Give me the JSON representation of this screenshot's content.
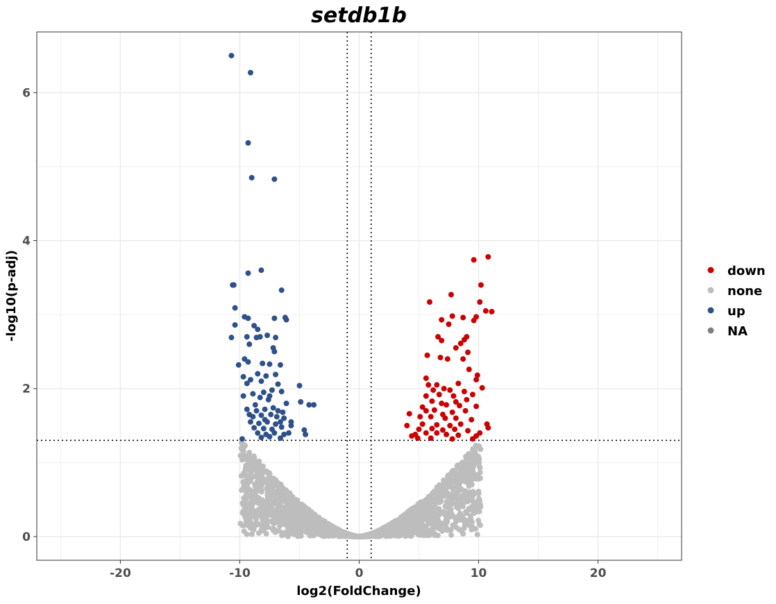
{
  "chart_data": {
    "type": "scatter",
    "title": "setdb1b",
    "xlabel": "log2(FoldChange)",
    "ylabel": "-log10(p-adj)",
    "xlim": [
      -27,
      27
    ],
    "ylim": [
      -0.32,
      6.82
    ],
    "xticks": [
      -20,
      -10,
      0,
      10,
      20
    ],
    "yticks": [
      0,
      2,
      4,
      6
    ],
    "xtick_labels": [
      "-20",
      "-10",
      "0",
      "10",
      "20"
    ],
    "ytick_labels": [
      "0",
      "2",
      "4",
      "6"
    ],
    "grid": true,
    "legend_position": "right",
    "thresholds": {
      "log2fc": [
        -1,
        1
      ],
      "neg_log10_padj": 1.3
    },
    "legend": [
      {
        "label": "down",
        "color": "#cc0000"
      },
      {
        "label": "none",
        "color": "#bdbdbd"
      },
      {
        "label": "up",
        "color": "#2e5189"
      },
      {
        "label": "NA",
        "color": "#7f7f7f"
      }
    ],
    "series": [
      {
        "name": "up",
        "color": "#2e5189",
        "points": [
          [
            -10.7,
            6.5
          ],
          [
            -9.1,
            6.27
          ],
          [
            -9.3,
            5.32
          ],
          [
            -9.0,
            4.85
          ],
          [
            -7.1,
            4.83
          ],
          [
            -8.2,
            3.6
          ],
          [
            -9.3,
            3.56
          ],
          [
            -10.5,
            3.4
          ],
          [
            -10.6,
            3.4
          ],
          [
            -6.5,
            3.33
          ],
          [
            -10.4,
            3.09
          ],
          [
            -9.6,
            2.97
          ],
          [
            -9.3,
            2.95
          ],
          [
            -7.1,
            2.95
          ],
          [
            -6.2,
            2.96
          ],
          [
            -6.1,
            2.93
          ],
          [
            -10.4,
            2.86
          ],
          [
            -8.8,
            2.85
          ],
          [
            -8.5,
            2.8
          ],
          [
            -10.7,
            2.69
          ],
          [
            -9.4,
            2.7
          ],
          [
            -8.6,
            2.69
          ],
          [
            -8.3,
            2.7
          ],
          [
            -7.7,
            2.72
          ],
          [
            -7.0,
            2.69
          ],
          [
            -9.2,
            2.6
          ],
          [
            -7.2,
            2.55
          ],
          [
            -7.1,
            2.5
          ],
          [
            -9.6,
            2.4
          ],
          [
            -9.3,
            2.36
          ],
          [
            -10.1,
            2.32
          ],
          [
            -8.1,
            2.34
          ],
          [
            -7.5,
            2.33
          ],
          [
            -6.6,
            2.32
          ],
          [
            -8.5,
            2.2
          ],
          [
            -9.7,
            2.16
          ],
          [
            -7.8,
            2.17
          ],
          [
            -7.0,
            2.19
          ],
          [
            -9.1,
            2.12
          ],
          [
            -9.4,
            2.07
          ],
          [
            -8.2,
            2.1
          ],
          [
            -6.8,
            2.06
          ],
          [
            -5.0,
            2.04
          ],
          [
            -9.7,
            1.9
          ],
          [
            -8.9,
            1.93
          ],
          [
            -8.0,
            1.95
          ],
          [
            -7.3,
            1.98
          ],
          [
            -6.5,
            1.96
          ],
          [
            -8.3,
            1.88
          ],
          [
            -7.6,
            1.85
          ],
          [
            -4.9,
            1.82
          ],
          [
            -6.1,
            1.8
          ],
          [
            -3.8,
            1.78
          ],
          [
            -9.4,
            1.72
          ],
          [
            -8.6,
            1.7
          ],
          [
            -7.9,
            1.72
          ],
          [
            -7.2,
            1.74
          ],
          [
            -6.8,
            1.7
          ],
          [
            -4.2,
            1.78
          ],
          [
            -8.9,
            1.62
          ],
          [
            -8.2,
            1.64
          ],
          [
            -7.4,
            1.65
          ],
          [
            -6.3,
            1.6
          ],
          [
            -9.1,
            1.55
          ],
          [
            -8.4,
            1.53
          ],
          [
            -7.7,
            1.55
          ],
          [
            -7.0,
            1.52
          ],
          [
            -6.6,
            1.55
          ],
          [
            -5.7,
            1.55
          ],
          [
            -8.8,
            1.47
          ],
          [
            -8.0,
            1.46
          ],
          [
            -7.3,
            1.45
          ],
          [
            -6.5,
            1.48
          ],
          [
            -5.7,
            1.5
          ],
          [
            -4.6,
            1.44
          ],
          [
            -8.5,
            1.4
          ],
          [
            -7.8,
            1.38
          ],
          [
            -7.1,
            1.4
          ],
          [
            -6.3,
            1.38
          ],
          [
            -5.9,
            1.4
          ],
          [
            -8.2,
            1.34
          ],
          [
            -7.5,
            1.35
          ],
          [
            -6.6,
            1.33
          ],
          [
            -9.8,
            1.32
          ],
          [
            -4.5,
            1.38
          ],
          [
            -9.2,
            1.65
          ],
          [
            -7.9,
            1.58
          ],
          [
            -6.9,
            1.62
          ],
          [
            -8.7,
            1.78
          ],
          [
            -7.5,
            1.9
          ],
          [
            -6.4,
            1.68
          ]
        ]
      },
      {
        "name": "down",
        "color": "#cc0000",
        "points": [
          [
            10.8,
            3.78
          ],
          [
            9.6,
            3.74
          ],
          [
            10.2,
            3.4
          ],
          [
            7.7,
            3.27
          ],
          [
            5.9,
            3.17
          ],
          [
            10.1,
            3.17
          ],
          [
            10.6,
            3.05
          ],
          [
            11.1,
            3.04
          ],
          [
            7.8,
            2.98
          ],
          [
            9.8,
            2.97
          ],
          [
            8.7,
            2.96
          ],
          [
            6.9,
            2.93
          ],
          [
            9.6,
            2.92
          ],
          [
            7.5,
            2.87
          ],
          [
            6.6,
            2.7
          ],
          [
            9.0,
            2.7
          ],
          [
            8.8,
            2.66
          ],
          [
            6.9,
            2.65
          ],
          [
            8.5,
            2.61
          ],
          [
            8.1,
            2.55
          ],
          [
            9.1,
            2.49
          ],
          [
            5.7,
            2.45
          ],
          [
            6.8,
            2.42
          ],
          [
            7.4,
            2.4
          ],
          [
            8.7,
            2.4
          ],
          [
            9.2,
            2.26
          ],
          [
            9.9,
            2.18
          ],
          [
            5.6,
            2.14
          ],
          [
            9.8,
            2.12
          ],
          [
            5.8,
            2.05
          ],
          [
            6.5,
            2.05
          ],
          [
            7.1,
            2.0
          ],
          [
            8.3,
            2.07
          ],
          [
            10.3,
            2.01
          ],
          [
            6.2,
            1.98
          ],
          [
            7.6,
            1.98
          ],
          [
            8.8,
            1.96
          ],
          [
            5.6,
            1.9
          ],
          [
            6.7,
            1.92
          ],
          [
            7.9,
            1.9
          ],
          [
            9.5,
            1.92
          ],
          [
            6.1,
            1.83
          ],
          [
            6.9,
            1.8
          ],
          [
            8.1,
            1.82
          ],
          [
            9.0,
            1.85
          ],
          [
            5.3,
            1.75
          ],
          [
            7.3,
            1.78
          ],
          [
            8.4,
            1.77
          ],
          [
            9.8,
            1.76
          ],
          [
            4.2,
            1.66
          ],
          [
            5.6,
            1.7
          ],
          [
            6.3,
            1.71
          ],
          [
            7.0,
            1.65
          ],
          [
            7.8,
            1.68
          ],
          [
            8.9,
            1.7
          ],
          [
            5.1,
            1.62
          ],
          [
            6.0,
            1.62
          ],
          [
            7.2,
            1.6
          ],
          [
            8.1,
            1.6
          ],
          [
            9.4,
            1.58
          ],
          [
            4.0,
            1.5
          ],
          [
            5.3,
            1.52
          ],
          [
            6.5,
            1.51
          ],
          [
            7.6,
            1.5
          ],
          [
            8.5,
            1.52
          ],
          [
            10.7,
            1.52
          ],
          [
            5.0,
            1.45
          ],
          [
            6.1,
            1.46
          ],
          [
            7.0,
            1.44
          ],
          [
            8.0,
            1.45
          ],
          [
            9.1,
            1.43
          ],
          [
            10.8,
            1.47
          ],
          [
            4.7,
            1.38
          ],
          [
            5.6,
            1.4
          ],
          [
            6.5,
            1.4
          ],
          [
            7.3,
            1.38
          ],
          [
            8.3,
            1.37
          ],
          [
            9.8,
            1.36
          ],
          [
            4.9,
            1.33
          ],
          [
            6.0,
            1.33
          ],
          [
            7.8,
            1.32
          ],
          [
            9.5,
            1.32
          ],
          [
            10.1,
            1.4
          ],
          [
            4.4,
            1.36
          ]
        ]
      }
    ],
    "none_envelope": {
      "x_range": [
        -10,
        10.2
      ],
      "y_range": [
        0,
        1.3
      ]
    }
  }
}
